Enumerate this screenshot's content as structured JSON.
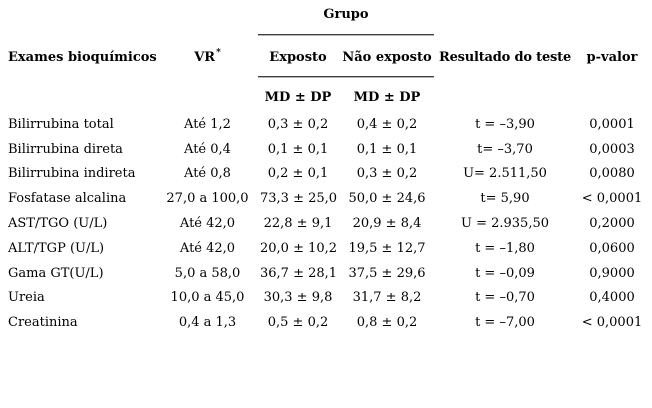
{
  "header": {
    "group_label": "Grupo",
    "exam_col": "Exames bioquímicos",
    "vr_label": "VR",
    "vr_sup": "*",
    "exposed_col": "Exposto",
    "not_exposed_col": "Não exposto",
    "test_col": "Resultado do teste",
    "pvalue_col": "p-valor",
    "md_dp_exposed": "MD ± DP",
    "md_dp_not_exposed": "MD ± DP"
  },
  "rows": [
    {
      "exam": "Bilirrubina total",
      "vr": "Até 1,2",
      "exposed": "0,3 ± 0,2",
      "not_exposed": "0,4 ± 0,2",
      "test": "t = –3,90",
      "p": "0,0001"
    },
    {
      "exam": "Bilirrubina direta",
      "vr": "Até 0,4",
      "exposed": "0,1 ± 0,1",
      "not_exposed": "0,1 ± 0,1",
      "test": "t= –3,70",
      "p": "0,0003"
    },
    {
      "exam": "Bilirrubina indireta",
      "vr": "Até 0,8",
      "exposed": "0,2 ± 0,1",
      "not_exposed": "0,3 ± 0,2",
      "test": "U= 2.511,50",
      "p": "0,0080"
    },
    {
      "exam": "Fosfatase alcalina",
      "vr": "27,0 a 100,0",
      "exposed": "73,3 ± 25,0",
      "not_exposed": "50,0 ± 24,6",
      "test": "t= 5,90",
      "p": "< 0,0001"
    },
    {
      "exam": "AST/TGO (U/L)",
      "vr": "Até 42,0",
      "exposed": "22,8 ± 9,1",
      "not_exposed": "20,9 ± 8,4",
      "test": "U = 2.935,50",
      "p": "0,2000"
    },
    {
      "exam": "ALT/TGP (U/L)",
      "vr": "Até 42,0",
      "exposed": "20,0 ± 10,2",
      "not_exposed": "19,5 ± 12,7",
      "test": "t = –1,80",
      "p": "0,0600"
    },
    {
      "exam": "Gama GT(U/L)",
      "vr": "5,0 a 58,0",
      "exposed": "36,7 ± 28,1",
      "not_exposed": "37,5 ± 29,6",
      "test": "t = –0,09",
      "p": "0,9000"
    },
    {
      "exam": "Ureia",
      "vr": "10,0 a 45,0",
      "exposed": "30,3 ± 9,8",
      "not_exposed": "31,7 ± 8,2",
      "test": "t = –0,70",
      "p": "0,4000"
    },
    {
      "exam": "Creatinina",
      "vr": "0,4 a 1,3",
      "exposed": "0,5 ± 0,2",
      "not_exposed": "0,8 ± 0,2",
      "test": "t = –7,00",
      "p": "< 0,0001"
    }
  ]
}
